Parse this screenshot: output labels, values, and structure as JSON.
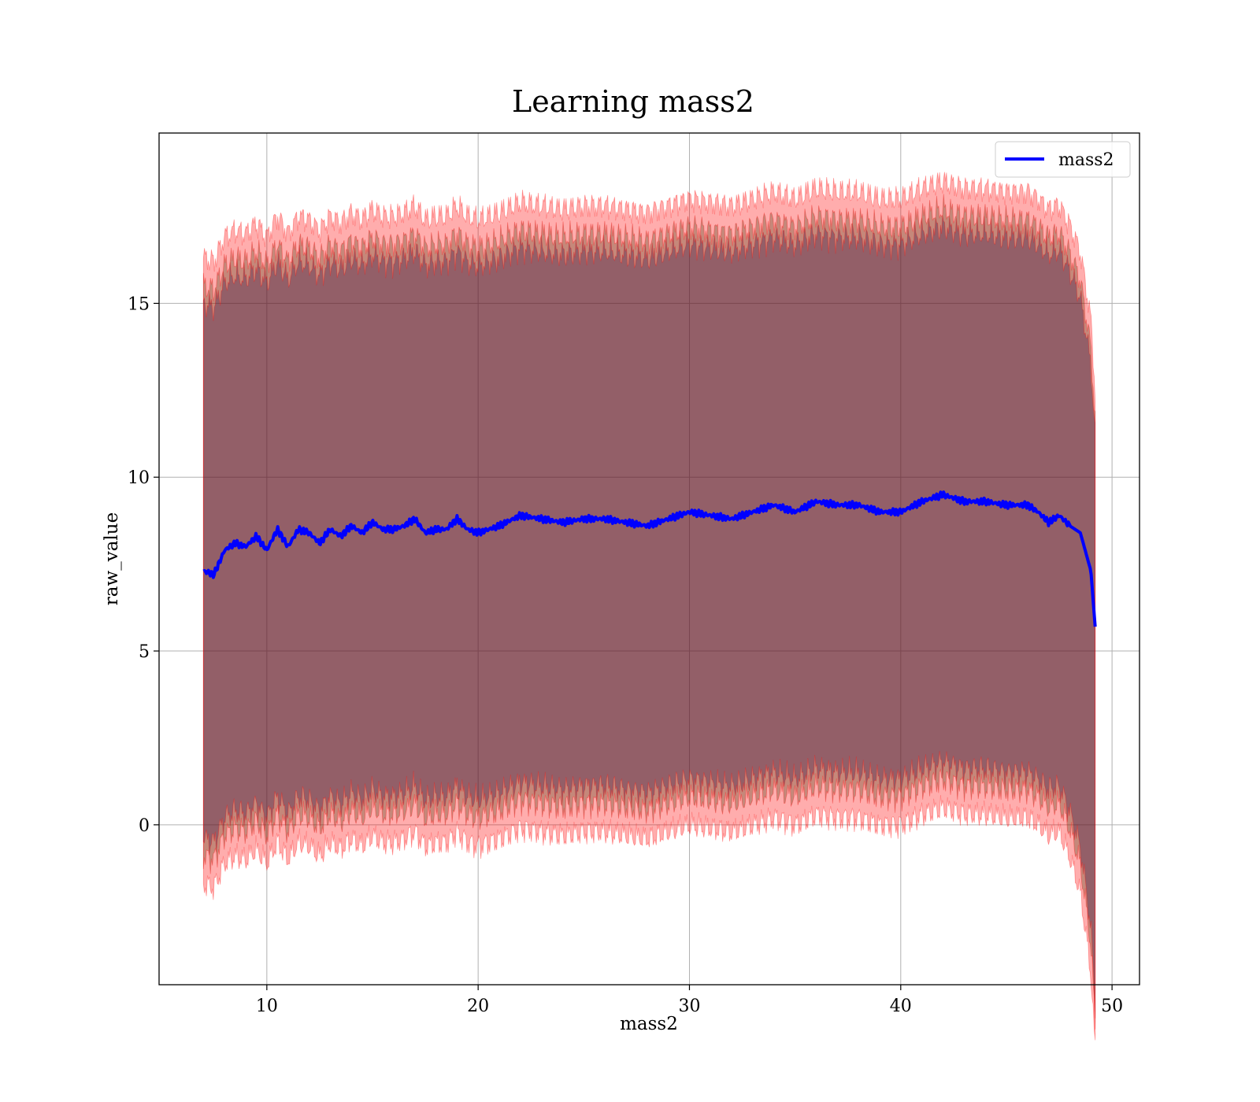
{
  "chart_data": {
    "type": "line",
    "title": "Learning mass2",
    "xlabel": "mass2",
    "ylabel": "raw_value",
    "xlim": [
      4.9,
      51.3
    ],
    "ylim": [
      -4.6,
      19.9
    ],
    "xticks": [
      10,
      20,
      30,
      40,
      50
    ],
    "yticks": [
      0,
      5,
      10,
      15
    ],
    "grid": true,
    "legend": {
      "position": "top-right",
      "entries": [
        "mass2"
      ]
    },
    "colors": {
      "line": "#0000ff",
      "band": "#ff0000",
      "band_opacity": 0.32,
      "band_inner_tint": "#4a3a10",
      "band_core_tint": "#2a0a44",
      "grid": "#b0b0b0"
    },
    "x": [
      7.0,
      7.5,
      8.0,
      8.5,
      9.0,
      9.5,
      10.0,
      10.5,
      11.0,
      11.5,
      12.0,
      12.5,
      13.0,
      13.5,
      14.0,
      14.5,
      15.0,
      15.5,
      16.0,
      16.5,
      17.0,
      17.5,
      18.0,
      18.5,
      19.0,
      19.5,
      20.0,
      21.0,
      22.0,
      23.0,
      24.0,
      25.0,
      26.0,
      27.0,
      28.0,
      29.0,
      30.0,
      31.0,
      32.0,
      33.0,
      34.0,
      35.0,
      36.0,
      37.0,
      38.0,
      39.0,
      40.0,
      41.0,
      42.0,
      43.0,
      44.0,
      45.0,
      46.0,
      46.5,
      47.0,
      47.5,
      48.0,
      48.5,
      49.0,
      49.2
    ],
    "series": [
      {
        "name": "mass2",
        "values": [
          7.3,
          7.2,
          7.9,
          8.1,
          8.0,
          8.3,
          7.9,
          8.5,
          8.0,
          8.5,
          8.4,
          8.1,
          8.5,
          8.3,
          8.6,
          8.4,
          8.7,
          8.5,
          8.5,
          8.6,
          8.8,
          8.4,
          8.5,
          8.5,
          8.8,
          8.5,
          8.4,
          8.6,
          8.9,
          8.8,
          8.7,
          8.8,
          8.8,
          8.7,
          8.6,
          8.8,
          9.0,
          8.9,
          8.8,
          9.0,
          9.2,
          9.0,
          9.3,
          9.2,
          9.2,
          9.0,
          9.0,
          9.3,
          9.5,
          9.3,
          9.3,
          9.2,
          9.2,
          9.0,
          8.7,
          8.9,
          8.6,
          8.4,
          7.3,
          5.7
        ]
      }
    ]
  }
}
